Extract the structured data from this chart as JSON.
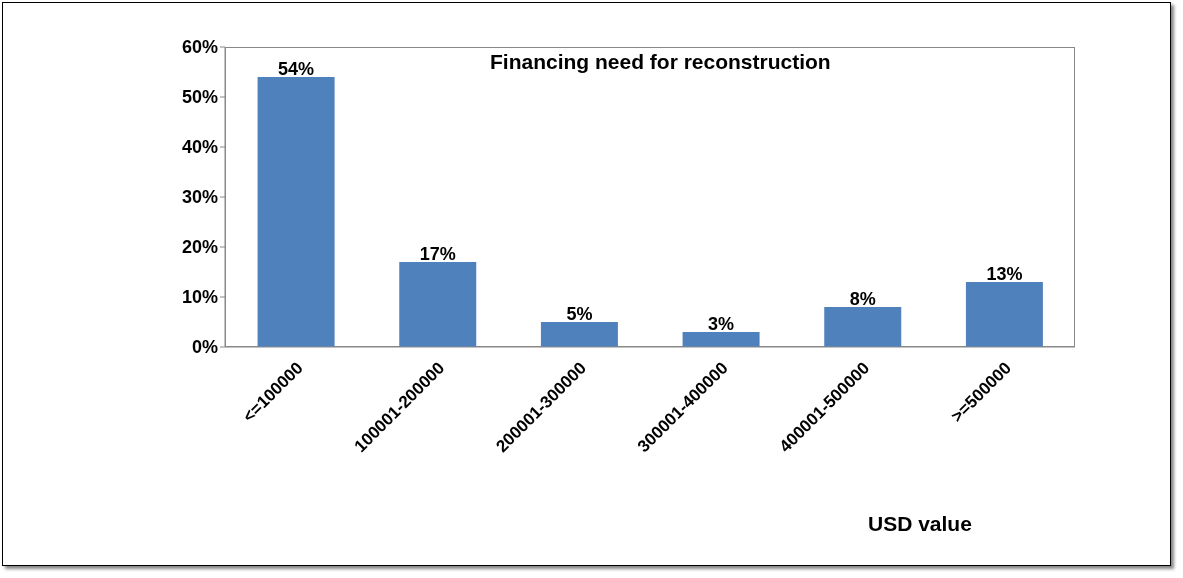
{
  "chart_data": {
    "type": "bar",
    "title": "Financing need for reconstruction",
    "xlabel": "USD value",
    "categories": [
      "<=100000",
      "100001-200000",
      "200001-300000",
      "300001-400000",
      "400001-500000",
      ">=500000"
    ],
    "values": [
      54,
      17,
      5,
      3,
      8,
      13
    ],
    "color": "#4f81bd",
    "value_labels": [
      "54%",
      "17%",
      "5%",
      "3%",
      "8%",
      "13%"
    ],
    "ylim": [
      0,
      60
    ],
    "yticks": [
      {
        "value": 0,
        "label": "0%"
      },
      {
        "value": 10,
        "label": "10%"
      },
      {
        "value": 20,
        "label": "20%"
      },
      {
        "value": 30,
        "label": "30%"
      },
      {
        "value": 40,
        "label": "40%"
      },
      {
        "value": 50,
        "label": "50%"
      },
      {
        "value": 60,
        "label": "60%"
      }
    ],
    "grid": false,
    "legend": false
  }
}
